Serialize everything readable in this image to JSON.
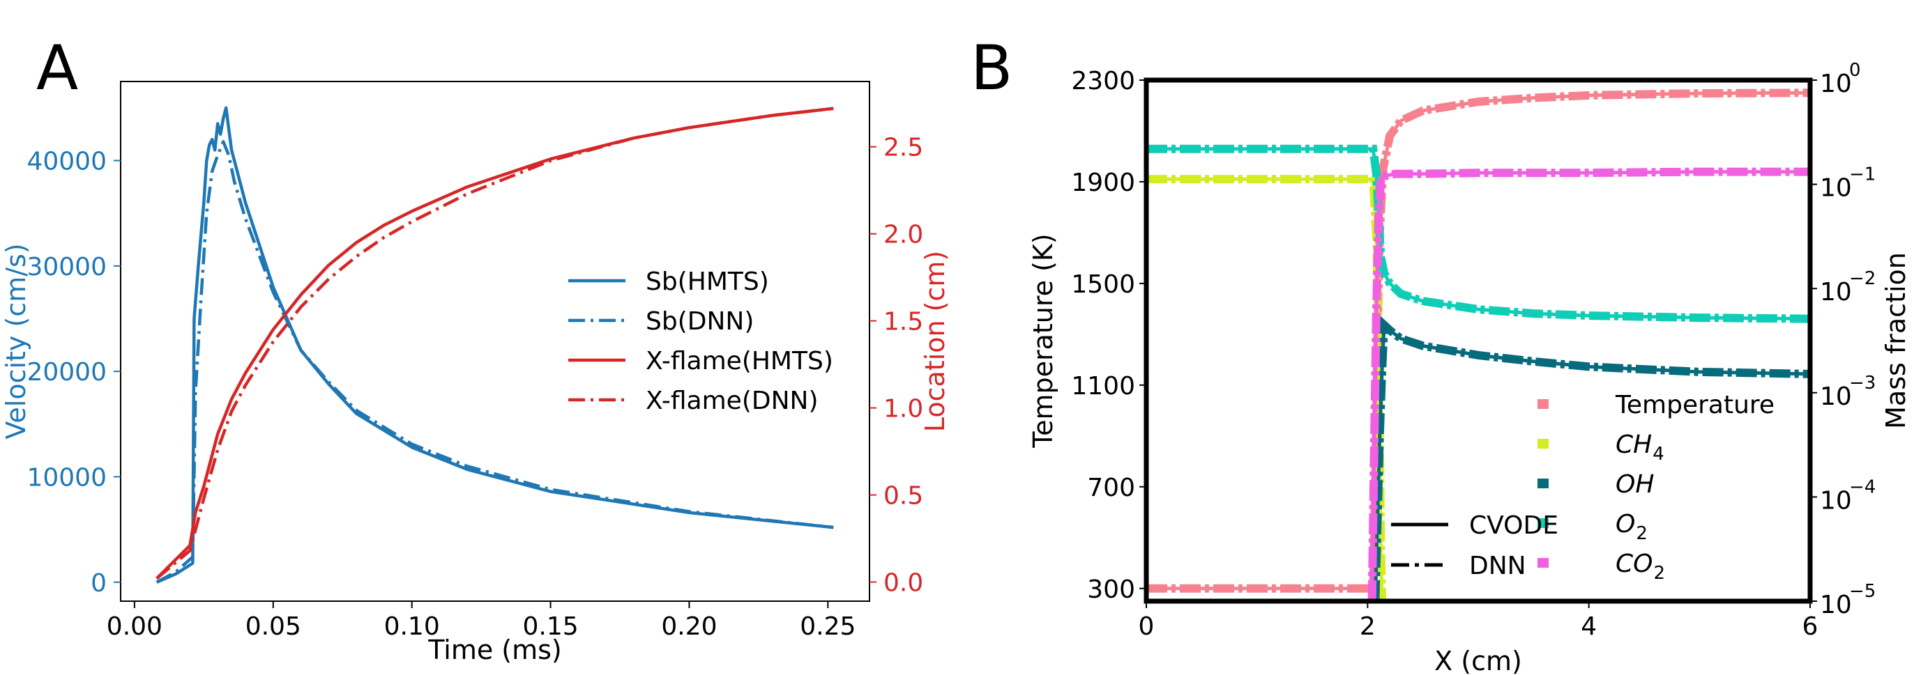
{
  "colors": {
    "blue": "#1f77b4",
    "red": "#d62728",
    "temperature": "#f7818f",
    "ch4": "#d4ec22",
    "oh": "#076b7c",
    "o2": "#10cdb5",
    "co2": "#f060e0",
    "black": "#000000"
  },
  "chart_data": [
    {
      "panel": "A",
      "type": "line",
      "xlabel": "Time (ms)",
      "ylabel_left": "Velocity (cm/s)",
      "ylabel_right": "Location (cm)",
      "xlim": [
        -0.005,
        0.265
      ],
      "ylim_left": [
        -1800,
        47500
      ],
      "ylim_right": [
        -0.11,
        2.875
      ],
      "x_ticks": [
        "0.00",
        "0.05",
        "0.10",
        "0.15",
        "0.20",
        "0.25"
      ],
      "y_left_ticks": [
        "0",
        "10000",
        "20000",
        "30000",
        "40000"
      ],
      "y_right_ticks": [
        "0.0",
        "0.5",
        "1.0",
        "1.5",
        "2.0",
        "2.5"
      ],
      "legend": {
        "placement": "center-right",
        "entries": [
          "Sb(HMTS)",
          "Sb(DNN)",
          "X-flame(HMTS)",
          "X-flame(DNN)"
        ]
      },
      "series": [
        {
          "name": "Sb(HMTS)",
          "axis": "left",
          "style": "solid",
          "color": "#1f77b4",
          "x": [
            0.008,
            0.015,
            0.021,
            0.0215,
            0.023,
            0.025,
            0.026,
            0.027,
            0.028,
            0.029,
            0.03,
            0.031,
            0.032,
            0.033,
            0.034,
            0.035,
            0.037,
            0.04,
            0.045,
            0.05,
            0.06,
            0.07,
            0.08,
            0.1,
            0.12,
            0.15,
            0.2,
            0.252
          ],
          "y": [
            0,
            800,
            1800,
            25000,
            30000,
            36000,
            40000,
            41500,
            42000,
            41000,
            43500,
            42500,
            44000,
            45000,
            43000,
            41000,
            39000,
            36000,
            32000,
            28000,
            22000,
            18800,
            16000,
            12800,
            10700,
            8600,
            6600,
            5200
          ]
        },
        {
          "name": "Sb(DNN)",
          "axis": "left",
          "style": "dashdot",
          "color": "#1f77b4",
          "x": [
            0.008,
            0.015,
            0.021,
            0.022,
            0.024,
            0.026,
            0.028,
            0.03,
            0.032,
            0.034,
            0.036,
            0.04,
            0.045,
            0.05,
            0.06,
            0.07,
            0.08,
            0.1,
            0.12,
            0.15,
            0.2,
            0.252
          ],
          "y": [
            0,
            1000,
            2400,
            18000,
            27000,
            35000,
            39000,
            40500,
            41800,
            40500,
            38000,
            34500,
            31000,
            27500,
            22000,
            19000,
            16300,
            13100,
            11000,
            8800,
            6700,
            5200
          ]
        },
        {
          "name": "X-flame(HMTS)",
          "axis": "right",
          "style": "solid",
          "color": "#d62728",
          "x": [
            0.008,
            0.02,
            0.022,
            0.025,
            0.03,
            0.035,
            0.04,
            0.05,
            0.06,
            0.07,
            0.08,
            0.09,
            0.1,
            0.12,
            0.15,
            0.18,
            0.2,
            0.23,
            0.252
          ],
          "y": [
            0.02,
            0.21,
            0.4,
            0.55,
            0.85,
            1.05,
            1.2,
            1.45,
            1.65,
            1.82,
            1.95,
            2.05,
            2.13,
            2.27,
            2.43,
            2.55,
            2.61,
            2.68,
            2.72
          ]
        },
        {
          "name": "X-flame(DNN)",
          "axis": "right",
          "style": "dashdot",
          "color": "#d62728",
          "x": [
            0.008,
            0.02,
            0.022,
            0.025,
            0.03,
            0.035,
            0.04,
            0.05,
            0.06,
            0.07,
            0.08,
            0.09,
            0.1,
            0.12,
            0.15,
            0.18,
            0.2,
            0.23,
            0.252
          ],
          "y": [
            0.02,
            0.18,
            0.3,
            0.48,
            0.76,
            0.98,
            1.13,
            1.38,
            1.58,
            1.74,
            1.87,
            1.98,
            2.07,
            2.23,
            2.42,
            2.55,
            2.61,
            2.68,
            2.72
          ]
        }
      ]
    },
    {
      "panel": "B",
      "type": "line",
      "xlabel": "X (cm)",
      "ylabel_left": "Temperature (K)",
      "ylabel_right": "Mass fraction",
      "xlim": [
        0,
        6
      ],
      "ylim_left": [
        250,
        2300
      ],
      "ylim_right_log": [
        -5,
        0
      ],
      "x_ticks": [
        "0",
        "2",
        "4",
        "6"
      ],
      "y_left_ticks": [
        "300",
        "700",
        "1100",
        "1500",
        "1900",
        "2300"
      ],
      "y_right_ticks": [
        "10",
        "10",
        "10",
        "10",
        "10",
        "10"
      ],
      "y_right_exponents": [
        "−5",
        "−4",
        "−3",
        "−2",
        "−1",
        "0"
      ],
      "legend_species": {
        "placement": "lower-right",
        "entries": [
          "Temperature",
          "CH",
          "OH",
          "O",
          "CO"
        ],
        "subscripts": [
          "",
          "4",
          "",
          "2",
          "2"
        ]
      },
      "legend_method": {
        "placement": "lower-center",
        "entries": [
          "CVODE",
          "DNN"
        ]
      },
      "series": [
        {
          "name": "Temperature",
          "axis": "left",
          "color": "#f7818f",
          "x": [
            0,
            1.5,
            2.05,
            2.07,
            2.09,
            2.11,
            2.14,
            2.2,
            2.3,
            2.5,
            3.0,
            3.5,
            4.0,
            5.0,
            6.0
          ],
          "y": [
            300,
            300,
            300,
            700,
            1300,
            1700,
            1950,
            2080,
            2140,
            2180,
            2215,
            2230,
            2240,
            2248,
            2250
          ]
        },
        {
          "name": "CH4",
          "axis": "right",
          "color": "#d4ec22",
          "x": [
            0,
            1.5,
            2.05,
            2.08,
            2.1,
            2.11,
            2.12,
            2.13
          ],
          "y": [
            -0.95,
            -0.95,
            -0.95,
            -1.5,
            -2.5,
            -3.5,
            -4.5,
            -5.0
          ]
        },
        {
          "name": "OH",
          "axis": "right",
          "color": "#076b7c",
          "x": [
            2.07,
            2.09,
            2.11,
            2.13,
            2.15,
            2.2,
            2.3,
            2.5,
            3.0,
            3.5,
            4.0,
            5.0,
            6.0
          ],
          "y": [
            -5.0,
            -4.2,
            -3.4,
            -2.8,
            -2.35,
            -2.4,
            -2.48,
            -2.55,
            -2.64,
            -2.7,
            -2.75,
            -2.8,
            -2.82
          ]
        },
        {
          "name": "O2",
          "axis": "right",
          "color": "#10cdb5",
          "x": [
            0,
            1.5,
            2.05,
            2.08,
            2.1,
            2.12,
            2.15,
            2.2,
            2.3,
            2.5,
            3.0,
            3.5,
            4.0,
            5.0,
            6.0
          ],
          "y": [
            -0.66,
            -0.66,
            -0.66,
            -0.9,
            -1.3,
            -1.7,
            -1.85,
            -1.95,
            -2.05,
            -2.12,
            -2.2,
            -2.24,
            -2.26,
            -2.28,
            -2.29
          ]
        },
        {
          "name": "CO2",
          "axis": "right",
          "color": "#f060e0",
          "x": [
            2.04,
            2.06,
            2.08,
            2.1,
            2.12,
            2.16,
            2.25,
            2.5,
            3.0,
            4.0,
            5.0,
            6.0
          ],
          "y": [
            -5.0,
            -3.5,
            -2.2,
            -1.3,
            -0.95,
            -0.92,
            -0.9,
            -0.9,
            -0.89,
            -0.89,
            -0.88,
            -0.88
          ]
        }
      ]
    }
  ]
}
